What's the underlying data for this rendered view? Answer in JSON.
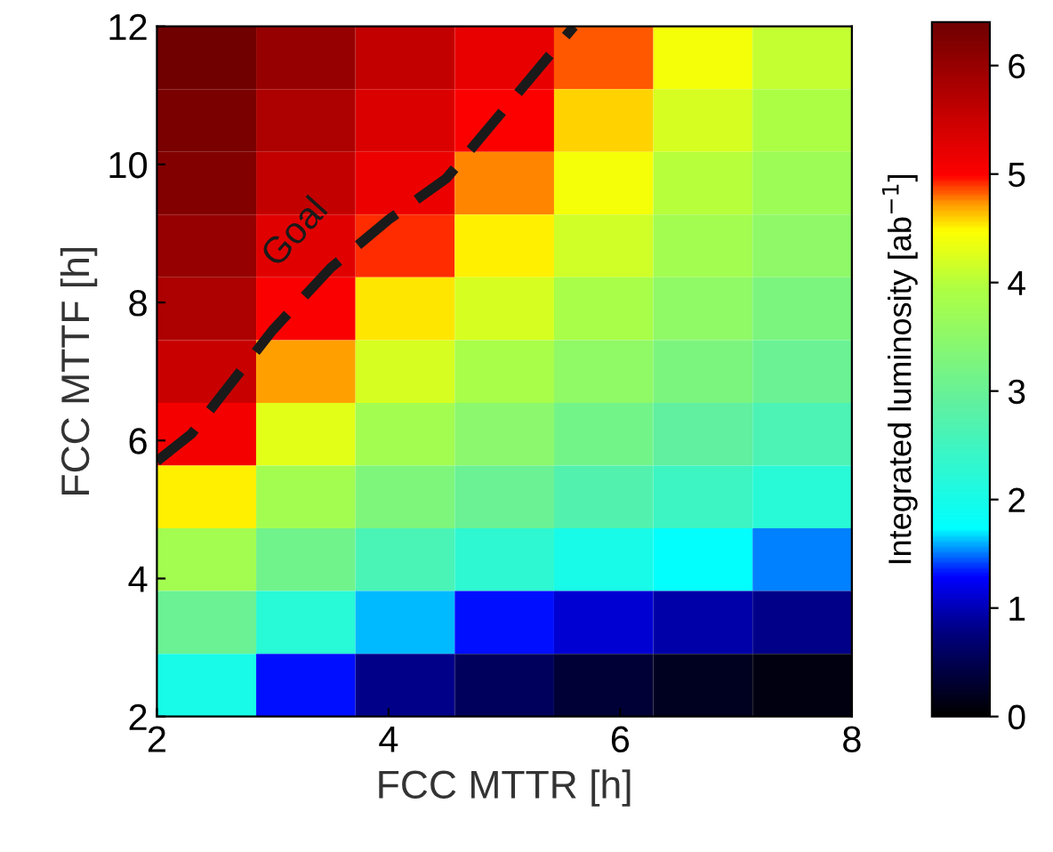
{
  "chart_data": {
    "type": "heatmap",
    "xlabel": "FCC MTTR [h]",
    "ylabel": "FCC MTTF [h]",
    "clabel": "Integrated luminosity [ab$^{−1}$]",
    "cells": [
      [
        6.4,
        6.0,
        5.6,
        5.2,
        4.85,
        4.4,
        4.1
      ],
      [
        6.3,
        5.8,
        5.35,
        5.0,
        4.6,
        4.2,
        3.9
      ],
      [
        6.2,
        5.6,
        5.15,
        4.75,
        4.4,
        4.0,
        3.7
      ],
      [
        6.0,
        5.3,
        4.9,
        4.5,
        4.15,
        3.8,
        3.5
      ],
      [
        5.8,
        5.05,
        4.55,
        4.2,
        3.85,
        3.55,
        3.25
      ],
      [
        5.5,
        4.7,
        4.2,
        3.85,
        3.55,
        3.25,
        3.0
      ],
      [
        5.1,
        4.3,
        3.8,
        3.45,
        3.15,
        2.9,
        2.65
      ],
      [
        4.5,
        3.8,
        3.3,
        3.0,
        2.7,
        2.45,
        2.2
      ],
      [
        3.8,
        3.1,
        2.6,
        2.3,
        2.0,
        1.75,
        1.5
      ],
      [
        3.0,
        2.2,
        1.6,
        1.3,
        1.1,
        0.95,
        0.8
      ],
      [
        2.0,
        1.3,
        0.8,
        0.55,
        0.35,
        0.2,
        0.1
      ]
    ],
    "clim": [
      0,
      6.4
    ],
    "cticks": [
      0,
      1,
      2,
      3,
      4,
      5,
      6
    ],
    "xlim": [
      2,
      8
    ],
    "xticks": [
      2,
      4,
      6,
      8
    ],
    "ylim": [
      2,
      12
    ],
    "yticks": [
      2,
      4,
      6,
      8,
      10,
      12
    ],
    "series": [
      {
        "type": "line",
        "color": "#1a1a1a",
        "line_style": "dashed",
        "x": [
          2,
          2.3,
          3,
          3.5,
          4,
          4.5,
          5,
          5.6
        ],
        "values": [
          5.7,
          6.1,
          7.6,
          8.5,
          9.2,
          9.8,
          10.8,
          12
        ]
      }
    ],
    "annotations": [
      "Goal"
    ],
    "grid": false
  }
}
